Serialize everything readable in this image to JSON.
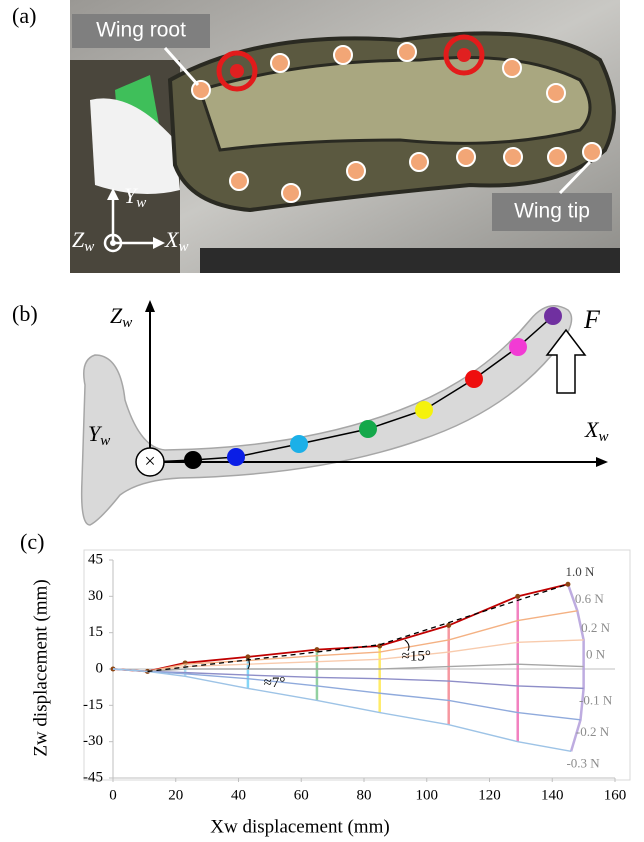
{
  "panel_labels": [
    "(a)",
    "(b)",
    "(c)"
  ],
  "photo": {
    "wing_root": "Wing root",
    "wing_tip": "Wing tip",
    "axes": [
      {
        "main": "Y",
        "sub": "w"
      },
      {
        "main": "Z",
        "sub": "w"
      },
      {
        "main": "X",
        "sub": "w"
      }
    ]
  },
  "diagram": {
    "axes": [
      {
        "main": "Z",
        "sub": "w"
      },
      {
        "main": "X",
        "sub": "w"
      },
      {
        "main": "Y",
        "sub": "w"
      }
    ],
    "force": "F"
  },
  "chart_data": {
    "type": "line",
    "xlabel": "Xw displacement (mm)",
    "ylabel": "Zw displacement (mm)",
    "xlim": [
      0,
      160
    ],
    "ylim": [
      -45,
      45
    ],
    "xticks": [
      0,
      20,
      40,
      60,
      80,
      100,
      120,
      140,
      160
    ],
    "yticks": [
      -45,
      -30,
      -15,
      0,
      15,
      30,
      45
    ],
    "series": [
      {
        "name": "1.0 N",
        "color": "#c00000",
        "markers": true,
        "x": [
          0,
          11,
          23,
          43,
          65,
          85,
          107,
          129,
          145
        ],
        "values": [
          0,
          -1,
          2.5,
          5,
          8,
          9.5,
          18,
          30,
          35
        ]
      },
      {
        "name": "0.6 N",
        "color": "#f4b183",
        "x": [
          0,
          11,
          23,
          43,
          65,
          85,
          107,
          129,
          148
        ],
        "values": [
          0,
          -1,
          2,
          3.5,
          5.5,
          7,
          12,
          20,
          24
        ]
      },
      {
        "name": "0.2 N",
        "color": "#f8cbad",
        "x": [
          0,
          11,
          23,
          43,
          65,
          85,
          107,
          129,
          150
        ],
        "values": [
          0,
          -1,
          1,
          2,
          3,
          4,
          7,
          11,
          12
        ]
      },
      {
        "name": "0 N",
        "color": "#a6a6a6",
        "x": [
          0,
          11,
          23,
          43,
          65,
          85,
          107,
          129,
          150
        ],
        "values": [
          0,
          -1,
          0,
          0,
          0,
          0,
          1,
          2,
          1
        ]
      },
      {
        "name": "-0.1 N",
        "color": "#8e8ec8",
        "x": [
          0,
          11,
          23,
          43,
          65,
          85,
          107,
          129,
          150
        ],
        "values": [
          0,
          -1,
          -1.5,
          -2.5,
          -3.5,
          -4,
          -5,
          -7,
          -8
        ]
      },
      {
        "name": "-0.2 N",
        "color": "#8faadc",
        "x": [
          0,
          11,
          23,
          43,
          65,
          85,
          107,
          129,
          149
        ],
        "values": [
          0,
          -1,
          -2,
          -4,
          -7,
          -10,
          -13,
          -18,
          -21
        ]
      },
      {
        "name": "-0.3 N",
        "color": "#9dc3e6",
        "x": [
          0,
          11,
          23,
          43,
          65,
          85,
          107,
          129,
          146
        ],
        "values": [
          0,
          -1,
          -3,
          -8,
          -13,
          -18,
          -23,
          -30,
          -34
        ]
      }
    ],
    "trace_colors": [
      null,
      null,
      "#9dd9f0",
      "#6ecff6",
      "#7fc98f",
      "#ffe74c",
      "#f4868f",
      "#f06bb5",
      "#b39ddb"
    ],
    "reference_lines": [
      {
        "x": [
          11,
          85
        ],
        "y": [
          -1,
          10
        ]
      },
      {
        "x": [
          85,
          145
        ],
        "y": [
          10,
          35
        ]
      }
    ],
    "annotations": [
      "≈7°",
      "≈15°"
    ],
    "grid": false
  }
}
